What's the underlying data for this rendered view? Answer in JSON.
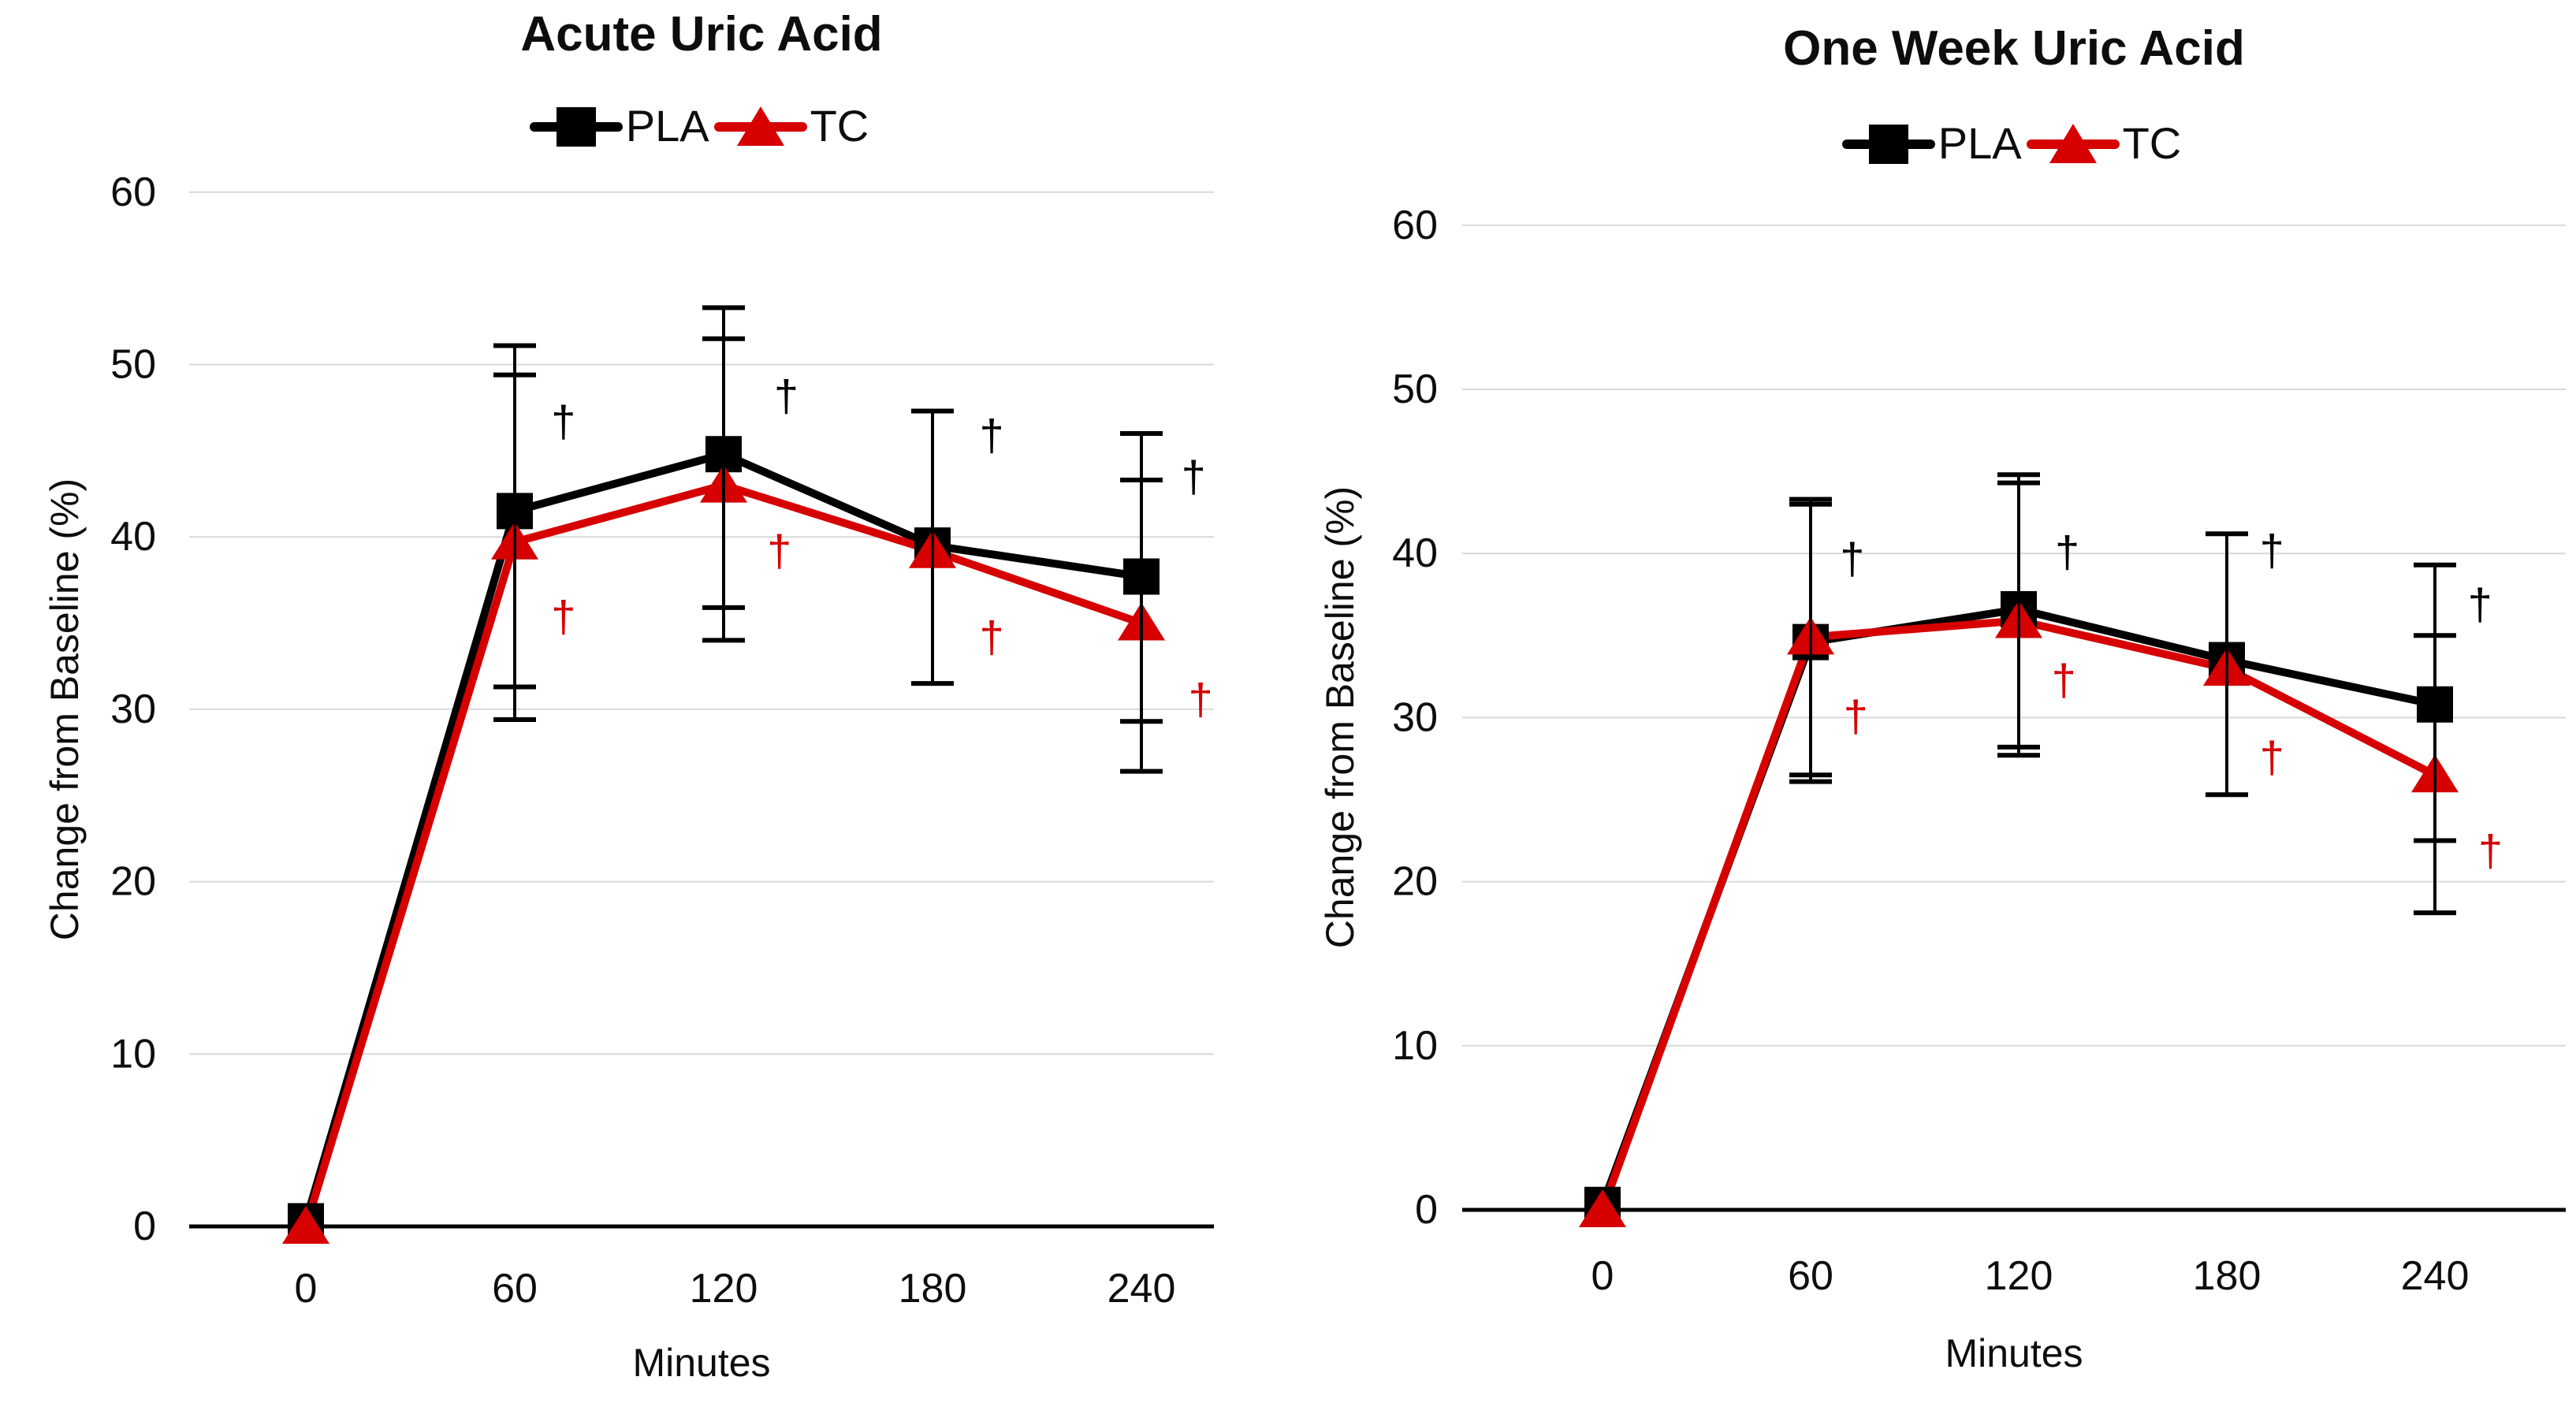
{
  "page": {
    "background": "#ffffff",
    "text_color": "#0d0d0d",
    "gridline_color": "#d9d9d9"
  },
  "chart_data": [
    {
      "type": "line",
      "title": "Acute Uric Acid",
      "xlabel": "Minutes",
      "ylabel": "Change from Baseline (%)",
      "x": [
        0,
        60,
        120,
        180,
        240
      ],
      "x_tick_labels": [
        "0",
        "60",
        "120",
        "180",
        "240"
      ],
      "y_ticks": [
        0,
        10,
        20,
        30,
        40,
        50,
        60
      ],
      "ylim": [
        0,
        60
      ],
      "grid": true,
      "legend_position": "top-center",
      "error_bar_color": "#000000",
      "series": [
        {
          "name": "PLA",
          "color": "#000000",
          "marker": "square",
          "values": [
            0.3,
            41.5,
            44.8,
            39.5,
            37.7
          ],
          "err_low": [
            null,
            31.3,
            35.9,
            31.5,
            29.3
          ],
          "err_high": [
            null,
            51.1,
            53.3,
            47.3,
            46.0
          ]
        },
        {
          "name": "TC",
          "color": "#d60000",
          "marker": "triangle-up",
          "values": [
            0.0,
            39.7,
            43.0,
            39.2,
            35.0
          ],
          "err_low": [
            null,
            29.4,
            34.0,
            null,
            26.4
          ],
          "err_high": [
            null,
            49.4,
            51.5,
            null,
            43.3
          ]
        }
      ],
      "annotations": [
        {
          "symbol": "†",
          "x": 74,
          "y": 46.7,
          "color": "#000000"
        },
        {
          "symbol": "†",
          "x": 74,
          "y": 35.4,
          "color": "#d60000"
        },
        {
          "symbol": "†",
          "x": 138,
          "y": 48.2,
          "color": "#000000"
        },
        {
          "symbol": "†",
          "x": 136,
          "y": 39.2,
          "color": "#d60000"
        },
        {
          "symbol": "†",
          "x": 197,
          "y": 45.9,
          "color": "#000000"
        },
        {
          "symbol": "†",
          "x": 197,
          "y": 34.2,
          "color": "#d60000"
        },
        {
          "symbol": "†",
          "x": 255,
          "y": 43.5,
          "color": "#000000"
        },
        {
          "symbol": "†",
          "x": 257,
          "y": 30.6,
          "color": "#d60000"
        }
      ]
    },
    {
      "type": "line",
      "title": "One Week Uric Acid",
      "xlabel": "Minutes",
      "ylabel": "Change from Baseline (%)",
      "x": [
        0,
        60,
        120,
        180,
        240
      ],
      "x_tick_labels": [
        "0",
        "60",
        "120",
        "180",
        "240"
      ],
      "y_ticks": [
        0,
        10,
        20,
        30,
        40,
        50,
        60
      ],
      "ylim": [
        0,
        60
      ],
      "grid": true,
      "legend_position": "top-center",
      "error_bar_color": "#000000",
      "series": [
        {
          "name": "PLA",
          "color": "#000000",
          "marker": "square",
          "values": [
            0.3,
            34.6,
            36.6,
            33.5,
            30.8
          ],
          "err_low": [
            null,
            26.1,
            28.2,
            25.3,
            22.5
          ],
          "err_high": [
            null,
            43.3,
            44.8,
            41.2,
            39.3
          ]
        },
        {
          "name": "TC",
          "color": "#d60000",
          "marker": "triangle-up",
          "values": [
            0.0,
            34.9,
            35.9,
            33.0,
            26.5
          ],
          "err_low": [
            null,
            26.5,
            27.7,
            null,
            18.1
          ],
          "err_high": [
            null,
            43.0,
            44.3,
            null,
            35.0
          ]
        }
      ],
      "annotations": [
        {
          "symbol": "†",
          "x": 72,
          "y": 39.7,
          "color": "#000000"
        },
        {
          "symbol": "†",
          "x": 73,
          "y": 30.1,
          "color": "#d60000"
        },
        {
          "symbol": "†",
          "x": 134,
          "y": 40.1,
          "color": "#000000"
        },
        {
          "symbol": "†",
          "x": 133,
          "y": 32.3,
          "color": "#d60000"
        },
        {
          "symbol": "†",
          "x": 193,
          "y": 40.2,
          "color": "#000000"
        },
        {
          "symbol": "†",
          "x": 193,
          "y": 27.6,
          "color": "#d60000"
        },
        {
          "symbol": "†",
          "x": 253,
          "y": 36.9,
          "color": "#000000"
        },
        {
          "symbol": "†",
          "x": 256,
          "y": 21.9,
          "color": "#d60000"
        }
      ]
    }
  ]
}
